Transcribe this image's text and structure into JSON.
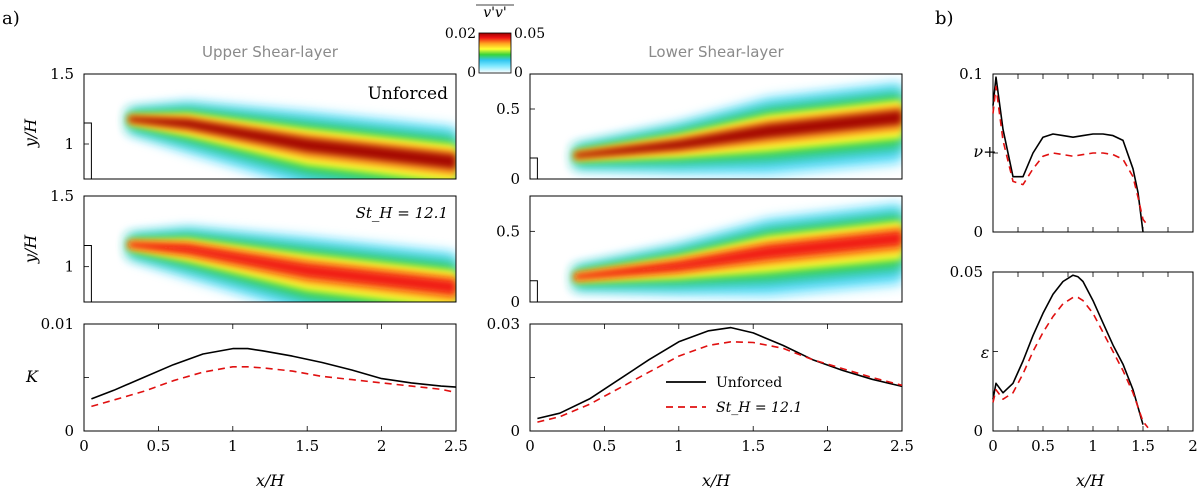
{
  "panel_labels": {
    "a": "a)",
    "b": "b)"
  },
  "titles": {
    "upper": "Upper Shear-layer",
    "lower": "Lower Shear-layer"
  },
  "colorbar": {
    "label": "v'v'",
    "min_label": "0.02",
    "max_label": "0.05",
    "zero_label": "0",
    "colors": [
      "#ffffff",
      "#7ee8ff",
      "#31c6f0",
      "#3ad43a",
      "#ffff33",
      "#ffa020",
      "#f01414",
      "#a00000"
    ]
  },
  "annotations": {
    "unforced": "Unforced",
    "forced": "St_H = 12.1"
  },
  "legend": {
    "unforced": "Unforced",
    "forced": "St_H = 12.1"
  },
  "colors": {
    "unforced": "#000000",
    "forced": "#e01010"
  },
  "chart_data": [
    {
      "id": "K-upper",
      "type": "line",
      "xlabel": "x/H",
      "ylabel": "K",
      "xlim": [
        0,
        2.5
      ],
      "ylim": [
        0,
        0.01
      ],
      "xticks": [
        "0",
        "0.5",
        "1",
        "1.5",
        "2",
        "2.5"
      ],
      "yticks": [
        "0",
        "0.01"
      ],
      "x": [
        0.05,
        0.2,
        0.4,
        0.6,
        0.8,
        1.0,
        1.1,
        1.2,
        1.4,
        1.6,
        1.8,
        2.0,
        2.2,
        2.4,
        2.5
      ],
      "series": [
        {
          "name": "Unforced",
          "values": [
            0.003,
            0.0038,
            0.005,
            0.0062,
            0.0072,
            0.0077,
            0.0077,
            0.0075,
            0.007,
            0.0064,
            0.0057,
            0.0049,
            0.0045,
            0.0042,
            0.0041
          ]
        },
        {
          "name": "St_H = 12.1",
          "values": [
            0.0023,
            0.0029,
            0.0037,
            0.0047,
            0.0055,
            0.006,
            0.006,
            0.0059,
            0.0056,
            0.0051,
            0.0048,
            0.0045,
            0.0042,
            0.0039,
            0.0036
          ]
        }
      ]
    },
    {
      "id": "K-lower",
      "type": "line",
      "xlabel": "x/H",
      "ylabel": "",
      "xlim": [
        0,
        2.5
      ],
      "ylim": [
        0,
        0.03
      ],
      "xticks": [
        "0",
        "0.5",
        "1",
        "1.5",
        "2",
        "2.5"
      ],
      "yticks": [
        "0",
        "0.03"
      ],
      "x": [
        0.05,
        0.2,
        0.4,
        0.6,
        0.8,
        1.0,
        1.2,
        1.35,
        1.5,
        1.7,
        1.9,
        2.1,
        2.3,
        2.5
      ],
      "series": [
        {
          "name": "Unforced",
          "values": [
            0.0035,
            0.005,
            0.009,
            0.0145,
            0.02,
            0.025,
            0.0281,
            0.029,
            0.0275,
            0.024,
            0.02,
            0.017,
            0.0145,
            0.0125
          ]
        },
        {
          "name": "St_H = 12.1",
          "values": [
            0.0025,
            0.004,
            0.0075,
            0.012,
            0.0165,
            0.021,
            0.024,
            0.025,
            0.0248,
            0.0232,
            0.02,
            0.0175,
            0.015,
            0.0128
          ]
        }
      ]
    },
    {
      "id": "nu-plus",
      "type": "line",
      "xlabel": "",
      "ylabel": "ν+",
      "xlim": [
        0,
        2
      ],
      "ylim": [
        0,
        0.1
      ],
      "xticks": [],
      "yticks": [
        "0",
        "0.1"
      ],
      "x": [
        0.0,
        0.03,
        0.1,
        0.2,
        0.3,
        0.4,
        0.5,
        0.6,
        0.7,
        0.8,
        0.9,
        1.0,
        1.1,
        1.2,
        1.3,
        1.4,
        1.45,
        1.5,
        1.55
      ],
      "series": [
        {
          "name": "Unforced",
          "values": [
            0.08,
            0.098,
            0.065,
            0.035,
            0.035,
            0.05,
            0.06,
            0.062,
            0.061,
            0.06,
            0.061,
            0.062,
            0.062,
            0.061,
            0.058,
            0.04,
            0.025,
            0.0,
            null
          ]
        },
        {
          "name": "St_H = 12.1",
          "values": [
            0.075,
            0.092,
            0.058,
            0.032,
            0.03,
            0.04,
            0.048,
            0.05,
            0.049,
            0.048,
            0.049,
            0.05,
            0.05,
            0.049,
            0.046,
            0.035,
            0.022,
            0.008,
            0.004
          ]
        }
      ]
    },
    {
      "id": "epsilon",
      "type": "line",
      "xlabel": "x/H",
      "ylabel": "ε",
      "xlim": [
        0,
        2
      ],
      "ylim": [
        0,
        0.05
      ],
      "xticks": [
        "0",
        "0.5",
        "1",
        "1.5",
        "2"
      ],
      "yticks": [
        "0",
        "0.05"
      ],
      "x": [
        0.0,
        0.03,
        0.1,
        0.2,
        0.3,
        0.4,
        0.5,
        0.6,
        0.7,
        0.8,
        0.85,
        0.9,
        1.0,
        1.1,
        1.2,
        1.3,
        1.4,
        1.5,
        1.55
      ],
      "series": [
        {
          "name": "Unforced",
          "values": [
            0.01,
            0.015,
            0.012,
            0.015,
            0.022,
            0.03,
            0.037,
            0.043,
            0.047,
            0.049,
            0.0485,
            0.047,
            0.041,
            0.034,
            0.027,
            0.021,
            0.013,
            0.002,
            null
          ]
        },
        {
          "name": "St_H = 12.1",
          "values": [
            0.009,
            0.013,
            0.01,
            0.012,
            0.018,
            0.025,
            0.031,
            0.036,
            0.04,
            0.042,
            0.042,
            0.041,
            0.037,
            0.031,
            0.025,
            0.019,
            0.012,
            0.003,
            0.001
          ]
        }
      ]
    },
    {
      "id": "contour-upper-unforced",
      "type": "heatmap",
      "xlim": [
        0,
        2.5
      ],
      "ylim": [
        0.75,
        1.5
      ],
      "yticks": [
        "1",
        "1.5"
      ],
      "ylabel": "y/H",
      "step": {
        "x": 0.05,
        "h": 1.15
      },
      "ridge": {
        "x": [
          0.3,
          0.7,
          1.5,
          2.5
        ],
        "y": [
          1.18,
          1.15,
          1.0,
          0.88
        ]
      },
      "peak": 0.05
    },
    {
      "id": "contour-upper-forced",
      "type": "heatmap",
      "xlim": [
        0,
        2.5
      ],
      "ylim": [
        0.75,
        1.5
      ],
      "yticks": [
        "1",
        "1.5"
      ],
      "ylabel": "y/H",
      "step": {
        "x": 0.05,
        "h": 1.15
      },
      "ridge": {
        "x": [
          0.3,
          0.7,
          1.5,
          2.5
        ],
        "y": [
          1.16,
          1.13,
          0.98,
          0.86
        ]
      },
      "peak": 0.045
    },
    {
      "id": "contour-lower-unforced",
      "type": "heatmap",
      "xlim": [
        0,
        2.5
      ],
      "ylim": [
        0,
        0.75
      ],
      "yticks": [
        "0",
        "0.5"
      ],
      "ylabel": "",
      "step": {
        "x": 0.05,
        "h": 0.15
      },
      "ridge": {
        "x": [
          0.3,
          1.0,
          1.6,
          2.5
        ],
        "y": [
          0.17,
          0.25,
          0.35,
          0.45
        ]
      },
      "peak": 0.05
    },
    {
      "id": "contour-lower-forced",
      "type": "heatmap",
      "xlim": [
        0,
        2.5
      ],
      "ylim": [
        0,
        0.75
      ],
      "yticks": [
        "0",
        "0.5"
      ],
      "ylabel": "",
      "step": {
        "x": 0.05,
        "h": 0.15
      },
      "ridge": {
        "x": [
          0.3,
          1.0,
          1.6,
          2.5
        ],
        "y": [
          0.18,
          0.26,
          0.36,
          0.46
        ]
      },
      "peak": 0.045
    }
  ]
}
